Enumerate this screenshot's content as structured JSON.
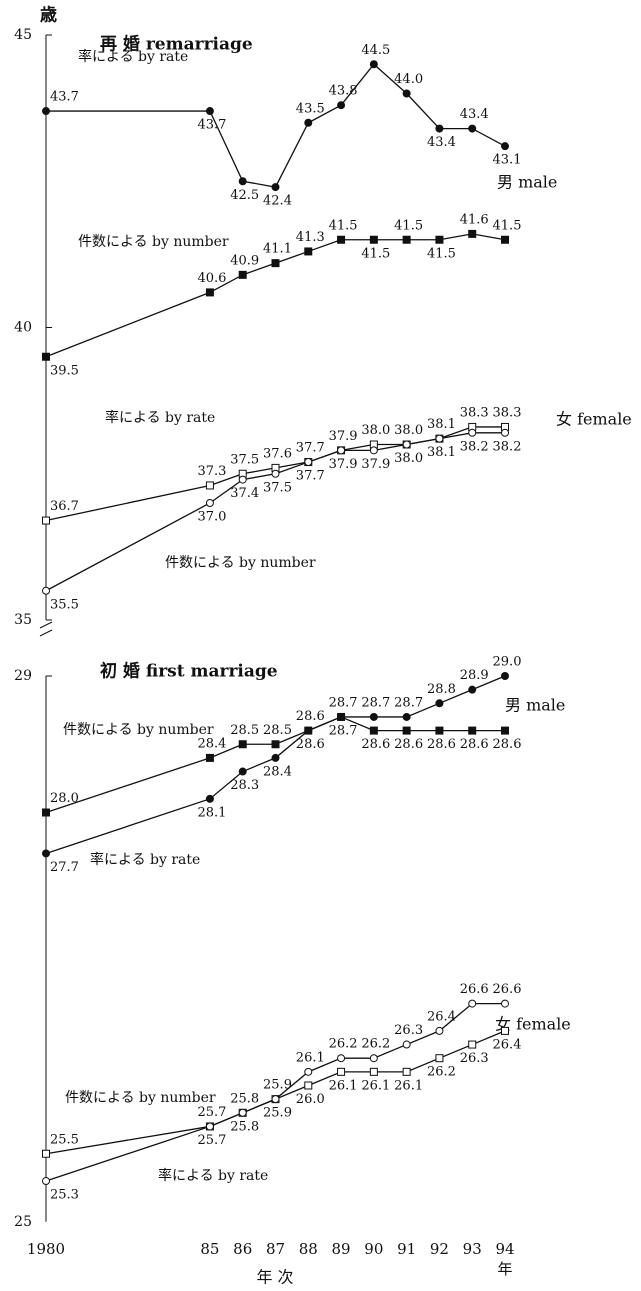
{
  "chart_data": [
    {
      "type": "line",
      "title": "再 婚 remarriage",
      "ylabel": "歳",
      "ylim": [
        35,
        45
      ],
      "yticks": [
        35,
        40,
        45
      ],
      "xlim": [
        1980,
        1994
      ],
      "x": [
        1980,
        1985,
        1986,
        1987,
        1988,
        1989,
        1990,
        1991,
        1992,
        1993,
        1994
      ],
      "annotations": [
        "男 male",
        "女 female"
      ],
      "series": [
        {
          "name": "率による by rate",
          "marker": "circle",
          "filled": true,
          "color": "#111",
          "values": [
            43.7,
            43.7,
            42.5,
            42.4,
            43.5,
            43.8,
            44.5,
            44.0,
            43.4,
            43.4,
            43.1
          ],
          "value_labels": [
            "43.7",
            "43.7",
            "42.5",
            "42.4",
            "43.5",
            "43.8",
            "44.5",
            "44.0",
            "43.4",
            "43.4",
            "43.1"
          ]
        },
        {
          "name": "件数による by number",
          "marker": "square",
          "filled": true,
          "color": "#111",
          "values": [
            39.5,
            40.6,
            40.9,
            41.1,
            41.3,
            41.5,
            41.5,
            41.5,
            41.5,
            41.6,
            41.5
          ],
          "value_labels": [
            "39.5",
            "40.6",
            "40.9",
            "41.1",
            "41.3",
            "41.5",
            "41.5",
            "41.5",
            "41.5",
            "41.6",
            "41.5"
          ]
        },
        {
          "name": "率による by rate",
          "marker": "square",
          "filled": false,
          "color": "#111",
          "values": [
            36.7,
            37.3,
            37.5,
            37.6,
            37.7,
            37.9,
            38.0,
            38.0,
            38.1,
            38.3,
            38.3
          ],
          "value_labels": [
            "36.7",
            "37.3",
            "37.5",
            "37.6",
            "37.7",
            "37.9",
            "38.0",
            "38.0",
            "38.1",
            "38.3",
            "38.3"
          ]
        },
        {
          "name": "件数による by number",
          "marker": "circle",
          "filled": false,
          "color": "#111",
          "values": [
            35.5,
            37.0,
            37.4,
            37.5,
            37.7,
            37.9,
            37.9,
            38.0,
            38.1,
            38.2,
            38.2
          ],
          "value_labels": [
            "35.5",
            "37.0",
            "37.4",
            "37.5",
            "37.7",
            "37.9",
            "37.9",
            "38.0",
            "38.1",
            "38.2",
            "38.2"
          ]
        }
      ]
    },
    {
      "type": "line",
      "title": "初 婚 first marriage",
      "xlabel": "年 次",
      "x_unit": "年",
      "ylim": [
        25,
        29
      ],
      "yticks": [
        25,
        29
      ],
      "xlim": [
        1980,
        1994
      ],
      "x": [
        1980,
        1985,
        1986,
        1987,
        1988,
        1989,
        1990,
        1991,
        1992,
        1993,
        1994
      ],
      "xticks": [
        {
          "value": 1980,
          "label": "1980"
        },
        {
          "value": 1985,
          "label": "85"
        },
        {
          "value": 1986,
          "label": "86"
        },
        {
          "value": 1987,
          "label": "87"
        },
        {
          "value": 1988,
          "label": "88"
        },
        {
          "value": 1989,
          "label": "89"
        },
        {
          "value": 1990,
          "label": "90"
        },
        {
          "value": 1991,
          "label": "91"
        },
        {
          "value": 1992,
          "label": "92"
        },
        {
          "value": 1993,
          "label": "93"
        },
        {
          "value": 1994,
          "label": "94"
        }
      ],
      "annotations": [
        "男 male",
        "女 female"
      ],
      "series": [
        {
          "name": "件数による by number",
          "marker": "square",
          "filled": true,
          "color": "#111",
          "values": [
            28.0,
            28.4,
            28.5,
            28.5,
            28.6,
            28.7,
            28.6,
            28.6,
            28.6,
            28.6,
            28.6
          ],
          "value_labels": [
            "28.0",
            "28.4",
            "28.5",
            "28.5",
            "28.6",
            "28.7",
            "28.6",
            "28.6",
            "28.6",
            "28.6",
            "28.6"
          ]
        },
        {
          "name": "率による by rate",
          "marker": "circle",
          "filled": true,
          "color": "#111",
          "values": [
            27.7,
            28.1,
            28.3,
            28.4,
            28.6,
            28.7,
            28.7,
            28.7,
            28.8,
            28.9,
            29.0
          ],
          "value_labels": [
            "27.7",
            "28.1",
            "28.3",
            "28.4",
            "28.6",
            "28.7",
            "28.7",
            "28.7",
            "28.8",
            "28.9",
            "29.0"
          ]
        },
        {
          "name": "件数による by number",
          "marker": "square",
          "filled": false,
          "color": "#111",
          "values": [
            25.5,
            25.7,
            25.8,
            25.9,
            26.0,
            26.1,
            26.1,
            26.1,
            26.2,
            26.3,
            26.4
          ],
          "value_labels": [
            "25.5",
            "25.7",
            "25.8",
            "25.9",
            "26.0",
            "26.1",
            "26.1",
            "26.1",
            "26.2",
            "26.3",
            "26.4"
          ]
        },
        {
          "name": "率による by rate",
          "marker": "circle",
          "filled": false,
          "color": "#111",
          "values": [
            25.3,
            25.7,
            25.8,
            25.9,
            26.1,
            26.2,
            26.2,
            26.3,
            26.4,
            26.6,
            26.6
          ],
          "value_labels": [
            "25.3",
            "25.7",
            "25.8",
            "25.9",
            "26.1",
            "26.2",
            "26.2",
            "26.3",
            "26.4",
            "26.6",
            "26.6"
          ]
        }
      ]
    }
  ]
}
